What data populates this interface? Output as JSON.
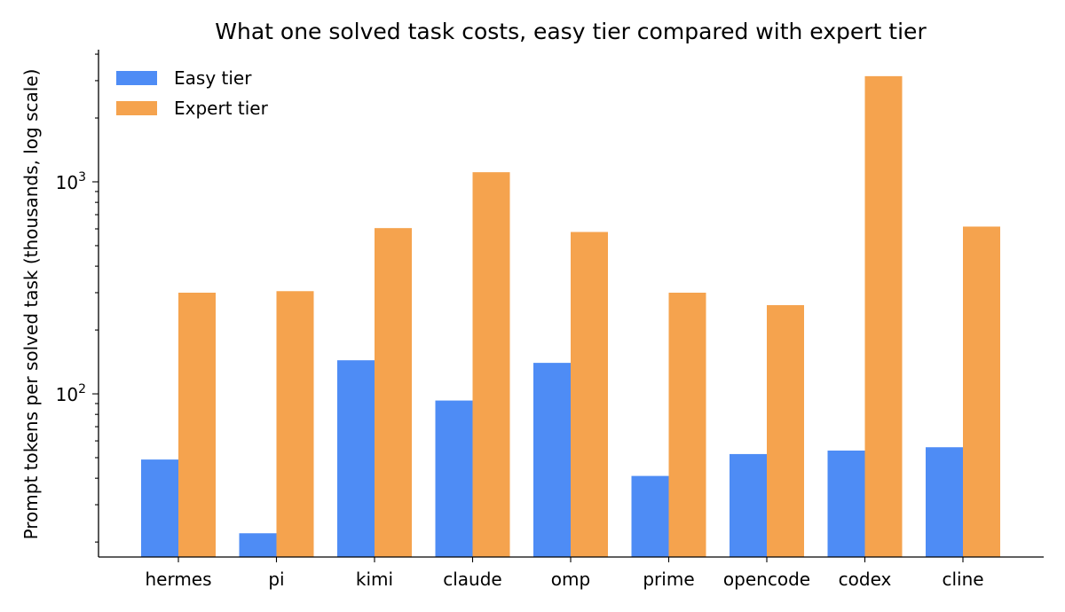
{
  "chart_data": {
    "type": "bar",
    "title": "What one solved task costs, easy tier compared with expert tier",
    "xlabel": "",
    "ylabel": "Prompt tokens per solved task (thousands, log scale)",
    "yscale": "log",
    "ylim": [
      17,
      4200
    ],
    "yticks": [
      {
        "value": 100,
        "base": "10",
        "exp": "2"
      },
      {
        "value": 1000,
        "base": "10",
        "exp": "3"
      }
    ],
    "categories": [
      "hermes",
      "pi",
      "kimi",
      "claude",
      "omp",
      "prime",
      "opencode",
      "codex",
      "cline"
    ],
    "series": [
      {
        "name": "Easy tier",
        "color": "#4e8cf5",
        "values": [
          49,
          22,
          144,
          93,
          140,
          41,
          52,
          54,
          56
        ]
      },
      {
        "name": "Expert tier",
        "color": "#f5a34e",
        "values": [
          300,
          305,
          605,
          1110,
          580,
          300,
          262,
          3150,
          615
        ]
      }
    ],
    "legend_position": "top-left",
    "grid": false
  }
}
